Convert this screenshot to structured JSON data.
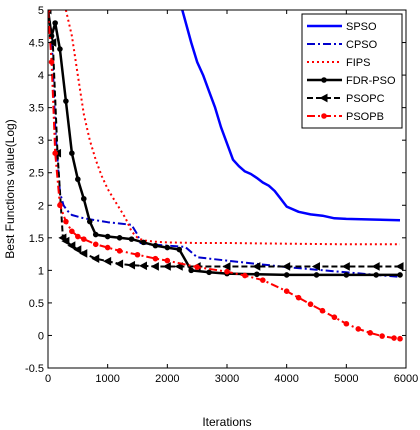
{
  "chart_data": {
    "type": "line",
    "title": "",
    "xlabel": "Iterations",
    "ylabel": "Best Functions value(Log)",
    "xlim": [
      0,
      6000
    ],
    "ylim": [
      -0.5,
      5
    ],
    "xticks": [
      0,
      1000,
      2000,
      3000,
      4000,
      5000,
      6000
    ],
    "yticks": [
      -0.5,
      0,
      0.5,
      1,
      1.5,
      2,
      2.5,
      3,
      3.5,
      4,
      4.5,
      5
    ],
    "xtick_labels": [
      "0",
      "1000",
      "2000",
      "3000",
      "4000",
      "5000",
      "6000"
    ],
    "ytick_labels": [
      "-0.5",
      "0",
      "0.5",
      "1",
      "1.5",
      "2",
      "2.5",
      "3",
      "3.5",
      "4",
      "4.5",
      "5"
    ],
    "grid": false,
    "legend_position": "top-right",
    "series": [
      {
        "name": "SPSO",
        "color": "#0000ff",
        "style": "solid",
        "marker": "none",
        "x": [
          2250,
          2400,
          2500,
          2600,
          2700,
          2800,
          2900,
          3000,
          3100,
          3200,
          3300,
          3400,
          3500,
          3600,
          3700,
          3800,
          3900,
          4000,
          4200,
          4400,
          4600,
          4800,
          5000,
          5500,
          5900
        ],
        "y": [
          5.0,
          4.5,
          4.2,
          4.0,
          3.75,
          3.5,
          3.2,
          2.95,
          2.7,
          2.6,
          2.52,
          2.48,
          2.42,
          2.35,
          2.3,
          2.22,
          2.1,
          1.98,
          1.9,
          1.86,
          1.84,
          1.8,
          1.79,
          1.78,
          1.77
        ]
      },
      {
        "name": "CPSO",
        "color": "#0000cc",
        "style": "dashdot",
        "marker": "none",
        "x": [
          0,
          60,
          120,
          200,
          260,
          320,
          400,
          600,
          800,
          1000,
          1200,
          1400,
          1500,
          1550,
          1700,
          2000,
          2300,
          2500,
          3000,
          3500,
          4000,
          4500,
          5000,
          5500,
          5900
        ],
        "y": [
          5.0,
          4.6,
          3.2,
          2.2,
          2.0,
          1.92,
          1.85,
          1.8,
          1.77,
          1.74,
          1.72,
          1.7,
          1.55,
          1.42,
          1.4,
          1.38,
          1.36,
          1.2,
          1.15,
          1.1,
          1.05,
          1.01,
          0.97,
          0.93,
          0.9
        ]
      },
      {
        "name": "FIPS",
        "color": "#ff0000",
        "style": "dotted",
        "marker": "none",
        "x": [
          300,
          400,
          500,
          600,
          700,
          800,
          900,
          1000,
          1100,
          1200,
          1300,
          1400,
          1500,
          1600,
          1800,
          2000,
          2500,
          3000,
          4000,
          5000,
          5900
        ],
        "y": [
          5.0,
          4.6,
          4.0,
          3.4,
          3.0,
          2.7,
          2.45,
          2.25,
          2.1,
          1.95,
          1.8,
          1.6,
          1.5,
          1.46,
          1.44,
          1.43,
          1.42,
          1.42,
          1.41,
          1.4,
          1.4
        ]
      },
      {
        "name": "FDR-PSO",
        "color": "#000000",
        "style": "solid",
        "marker": "dot",
        "x": [
          0,
          60,
          120,
          200,
          300,
          400,
          500,
          600,
          700,
          800,
          1000,
          1200,
          1400,
          1600,
          1800,
          2000,
          2200,
          2400,
          2700,
          3000,
          3500,
          4000,
          4500,
          5000,
          5500,
          5900
        ],
        "y": [
          5.0,
          4.6,
          4.8,
          4.4,
          3.6,
          2.8,
          2.4,
          2.1,
          1.75,
          1.55,
          1.52,
          1.5,
          1.48,
          1.43,
          1.38,
          1.35,
          1.32,
          1.0,
          0.97,
          0.95,
          0.94,
          0.93,
          0.93,
          0.93,
          0.93,
          0.93
        ]
      },
      {
        "name": "PSOPC",
        "color": "#000000",
        "style": "dashed",
        "marker": "triangle-left",
        "x": [
          0,
          80,
          160,
          250,
          300,
          400,
          500,
          600,
          800,
          1000,
          1200,
          1400,
          1600,
          1800,
          2000,
          2200,
          2500,
          3000,
          3500,
          4000,
          4500,
          5000,
          5500,
          5900
        ],
        "y": [
          5.0,
          4.5,
          2.8,
          1.5,
          1.45,
          1.38,
          1.32,
          1.26,
          1.18,
          1.14,
          1.1,
          1.08,
          1.07,
          1.06,
          1.06,
          1.06,
          1.06,
          1.06,
          1.06,
          1.06,
          1.06,
          1.06,
          1.06,
          1.06
        ]
      },
      {
        "name": "PSOPB",
        "color": "#ff0000",
        "style": "dashdot",
        "marker": "dot",
        "x": [
          0,
          60,
          120,
          200,
          300,
          400,
          500,
          600,
          800,
          1000,
          1200,
          1500,
          1800,
          2000,
          2500,
          3000,
          3300,
          3600,
          4000,
          4200,
          4400,
          4600,
          4800,
          5000,
          5200,
          5400,
          5600,
          5800,
          5900
        ],
        "y": [
          5.0,
          4.2,
          2.8,
          2.0,
          1.75,
          1.6,
          1.52,
          1.48,
          1.4,
          1.35,
          1.3,
          1.24,
          1.18,
          1.15,
          1.05,
          0.98,
          0.92,
          0.85,
          0.68,
          0.58,
          0.48,
          0.38,
          0.28,
          0.18,
          0.1,
          0.04,
          -0.01,
          -0.04,
          -0.05
        ]
      }
    ]
  }
}
